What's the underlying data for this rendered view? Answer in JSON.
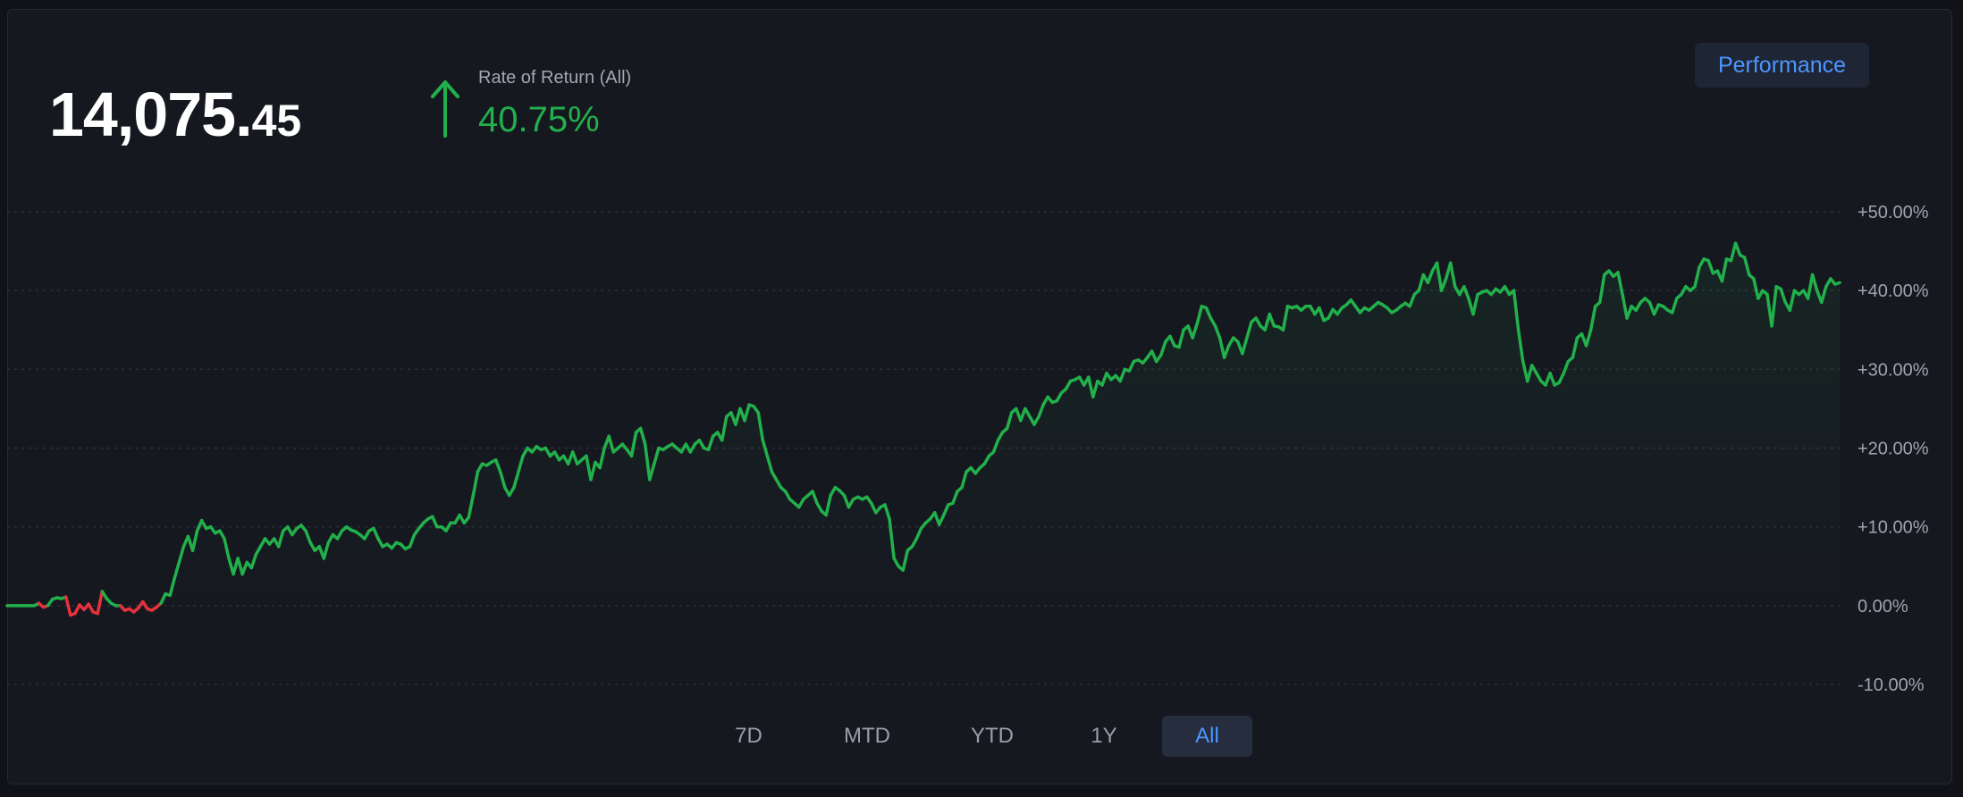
{
  "balance": {
    "integer": "14,075.",
    "decimal": "45"
  },
  "rate_of_return": {
    "label": "Rate of Return (All)",
    "value": "40.75%",
    "direction": "up",
    "color": "#22b04b"
  },
  "header": {
    "performance_label": "Performance"
  },
  "ranges": [
    {
      "label": "7D",
      "active": false
    },
    {
      "label": "MTD",
      "active": false
    },
    {
      "label": "YTD",
      "active": false
    },
    {
      "label": "1Y",
      "active": false
    },
    {
      "label": "All",
      "active": true
    }
  ],
  "colors": {
    "positive": "#22b04b",
    "negative": "#e5323c",
    "accent": "#4d96ff",
    "background": "#161820"
  },
  "chart_data": {
    "type": "line",
    "title": "",
    "xlabel": "",
    "ylabel": "",
    "ylim": [
      -10,
      50
    ],
    "y_ticks": [
      {
        "value": 50,
        "label": "+50.00%"
      },
      {
        "value": 40,
        "label": "+40.00%"
      },
      {
        "value": 30,
        "label": "+30.00%"
      },
      {
        "value": 20,
        "label": "+20.00%"
      },
      {
        "value": 10,
        "label": "+10.00%"
      },
      {
        "value": 0,
        "label": "0.00%"
      },
      {
        "value": -10,
        "label": "-10.00%"
      }
    ],
    "grid": true,
    "legend": "none",
    "series": [
      {
        "values": [
          0,
          0,
          0,
          0,
          0,
          0,
          0,
          0.3,
          -0.2,
          0,
          0.8,
          1,
          0.9,
          1.1,
          -1.2,
          -1,
          0.1,
          -0.5,
          0.2,
          -0.8,
          -1,
          1.8,
          0.9,
          0.3,
          0,
          0,
          -0.6,
          -0.4,
          -0.8,
          -0.3,
          0.5,
          -0.4,
          -0.6,
          -0.2,
          0.3,
          1.5,
          1.3,
          3.5,
          5.5,
          7.5,
          8.8,
          7,
          9.5,
          10.8,
          9.8,
          10,
          9.2,
          9.5,
          8.5,
          6,
          4,
          6,
          4,
          5.5,
          4.8,
          6.5,
          7.5,
          8.5,
          7.8,
          8.5,
          7.5,
          9.5,
          10,
          9,
          9.8,
          10.2,
          9.5,
          8,
          7,
          7.5,
          6,
          8,
          9,
          8.5,
          9.5,
          10,
          9.6,
          9.4,
          9,
          8.5,
          9.5,
          9.8,
          8.5,
          7.5,
          7.8,
          7.3,
          8,
          7.8,
          7.2,
          7.5,
          9,
          9.8,
          10.5,
          11,
          11.3,
          10,
          10,
          9.5,
          10.5,
          10.5,
          11.5,
          10.5,
          11.2,
          14,
          17,
          18,
          17.8,
          18.2,
          18.5,
          17,
          15,
          14,
          15,
          17,
          19,
          20,
          19.5,
          20.2,
          19.8,
          20,
          19,
          19.5,
          18.5,
          19,
          18,
          19.5,
          18,
          18.5,
          19,
          16,
          18.2,
          17.5,
          20,
          21.5,
          19.5,
          20,
          20.5,
          19.8,
          19,
          22,
          22.5,
          20.5,
          16,
          18,
          20,
          19.8,
          20.2,
          20.5,
          20,
          19.5,
          20.5,
          19.5,
          20.5,
          21,
          20,
          19.8,
          21.5,
          22,
          21,
          24,
          24.5,
          23,
          25,
          23.5,
          25.5,
          25.3,
          24.5,
          21,
          19,
          17,
          16,
          15,
          14.5,
          13.5,
          13,
          12.5,
          13.5,
          14,
          14.5,
          13,
          12,
          11.5,
          14,
          15,
          14.6,
          14,
          12.5,
          13.5,
          13.8,
          13.5,
          13.8,
          13,
          11.8,
          12.5,
          12.8,
          11,
          6,
          5,
          4.5,
          7,
          7.5,
          8.5,
          9.8,
          10.5,
          11,
          11.8,
          10.3,
          11.5,
          12.8,
          13,
          14.5,
          15,
          17,
          17.5,
          16.8,
          17.5,
          18,
          19,
          19.5,
          21,
          22,
          22.5,
          24.5,
          25,
          23.5,
          25,
          24,
          23,
          24,
          25.5,
          26.5,
          25.8,
          26,
          27,
          27.5,
          28.5,
          28.7,
          29,
          28,
          29,
          26.5,
          28.5,
          28,
          29.5,
          28.7,
          29.2,
          28.5,
          30,
          29.8,
          31,
          31.2,
          30.8,
          31.5,
          32.3,
          31,
          31.8,
          33.5,
          34.2,
          33,
          32.8,
          35,
          35.5,
          34,
          35.8,
          38,
          37.8,
          36.5,
          35.5,
          34,
          31.5,
          33,
          34,
          33.5,
          32,
          34,
          36,
          36.5,
          35.5,
          35,
          37,
          35.5,
          35.4,
          35,
          38,
          37.8,
          38,
          37.5,
          38,
          38,
          37,
          37.8,
          36.2,
          36.5,
          37.6,
          37,
          37.8,
          38.2,
          38.8,
          38,
          37.2,
          37.8,
          37.5,
          38,
          38.5,
          38.2,
          37.8,
          37.2,
          37.5,
          38,
          38.4,
          38,
          39.5,
          40,
          42,
          41,
          42.5,
          43.5,
          40,
          41.5,
          43.5,
          40.5,
          39.5,
          40.5,
          39,
          37,
          39.5,
          39.8,
          40,
          39.5,
          40.2,
          39.8,
          40.5,
          39.5,
          40,
          35,
          31,
          28.5,
          30.5,
          29.5,
          28.5,
          28,
          29.5,
          28,
          28.3,
          29.5,
          31,
          31.5,
          34,
          34.5,
          33,
          35,
          38,
          38.5,
          42,
          42.5,
          41.8,
          42.3,
          39.5,
          36.5,
          38,
          37.5,
          38.5,
          39,
          38.5,
          37,
          38.2,
          38,
          37.5,
          37.2,
          39,
          39.5,
          40.5,
          40,
          40.5,
          43,
          44,
          43.8,
          42.2,
          42.5,
          41.2,
          44,
          43.8,
          46,
          44.5,
          44.2,
          42,
          41.5,
          39,
          40,
          39.5,
          35.5,
          40.5,
          40.2,
          38.5,
          37.5,
          40,
          39.5,
          40,
          39,
          42,
          40,
          38.5,
          40.5,
          41.5,
          40.8,
          41
        ]
      }
    ]
  }
}
